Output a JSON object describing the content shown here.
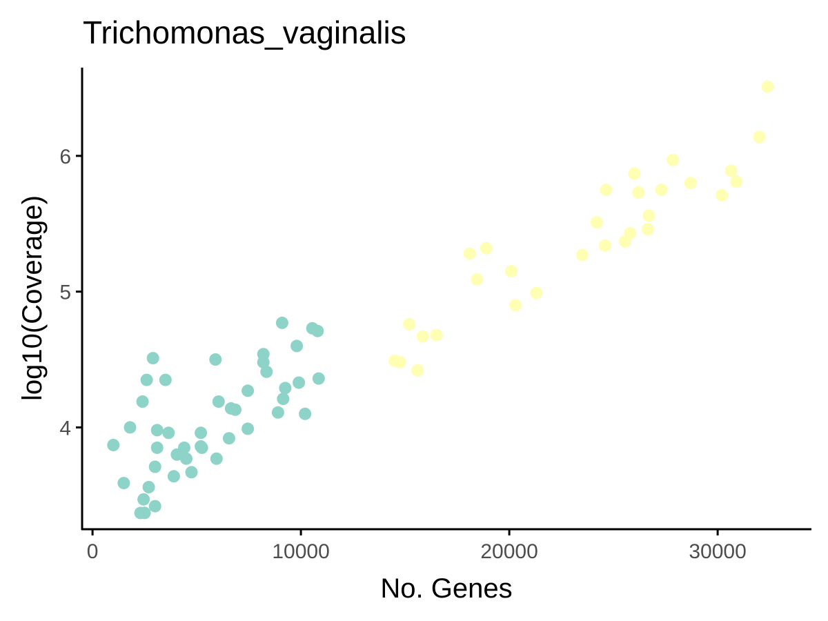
{
  "chart_data": {
    "type": "scatter",
    "title": "Trichomonas_vaginalis",
    "xlabel": "No. Genes",
    "ylabel": "log10(Coverage)",
    "xlim": [
      -500,
      34500
    ],
    "ylim": [
      3.25,
      6.65
    ],
    "x_ticks": [
      0,
      10000,
      20000,
      30000
    ],
    "y_ticks": [
      4,
      5,
      6
    ],
    "grid": false,
    "legend": "none",
    "series": [
      {
        "color": "#8dd3c7",
        "points": [
          [
            1000,
            3.87
          ],
          [
            1500,
            3.59
          ],
          [
            1800,
            4.0
          ],
          [
            2300,
            3.37
          ],
          [
            2400,
            4.19
          ],
          [
            2450,
            3.47
          ],
          [
            2500,
            3.37
          ],
          [
            2600,
            4.35
          ],
          [
            2700,
            3.56
          ],
          [
            2900,
            4.51
          ],
          [
            3000,
            3.42
          ],
          [
            3000,
            3.71
          ],
          [
            3100,
            3.85
          ],
          [
            3100,
            3.98
          ],
          [
            3500,
            4.35
          ],
          [
            3650,
            3.96
          ],
          [
            3900,
            3.64
          ],
          [
            4050,
            3.8
          ],
          [
            4400,
            3.85
          ],
          [
            4500,
            3.77
          ],
          [
            4750,
            3.67
          ],
          [
            5200,
            3.96
          ],
          [
            5200,
            3.86
          ],
          [
            5250,
            3.85
          ],
          [
            5900,
            4.5
          ],
          [
            5950,
            3.77
          ],
          [
            6050,
            4.19
          ],
          [
            6550,
            3.92
          ],
          [
            6650,
            4.14
          ],
          [
            6850,
            4.13
          ],
          [
            7450,
            4.27
          ],
          [
            7450,
            3.99
          ],
          [
            8200,
            4.54
          ],
          [
            8200,
            4.48
          ],
          [
            8350,
            4.41
          ],
          [
            8900,
            4.11
          ],
          [
            9100,
            4.77
          ],
          [
            9150,
            4.21
          ],
          [
            9250,
            4.29
          ],
          [
            9800,
            4.6
          ],
          [
            9900,
            4.33
          ],
          [
            10200,
            4.1
          ],
          [
            10550,
            4.73
          ],
          [
            10800,
            4.71
          ],
          [
            10850,
            4.36
          ]
        ]
      },
      {
        "color": "#ffffb3",
        "points": [
          [
            14500,
            4.49
          ],
          [
            14750,
            4.48
          ],
          [
            15200,
            4.76
          ],
          [
            15600,
            4.42
          ],
          [
            15850,
            4.67
          ],
          [
            16500,
            4.68
          ],
          [
            18100,
            5.28
          ],
          [
            18450,
            5.09
          ],
          [
            18900,
            5.32
          ],
          [
            20100,
            5.15
          ],
          [
            20300,
            4.9
          ],
          [
            21300,
            4.99
          ],
          [
            23500,
            5.27
          ],
          [
            24200,
            5.51
          ],
          [
            24600,
            5.34
          ],
          [
            24650,
            5.75
          ],
          [
            25550,
            5.37
          ],
          [
            25800,
            5.43
          ],
          [
            26000,
            5.87
          ],
          [
            26200,
            5.73
          ],
          [
            26650,
            5.46
          ],
          [
            26700,
            5.56
          ],
          [
            27300,
            5.75
          ],
          [
            27850,
            5.97
          ],
          [
            28700,
            5.8
          ],
          [
            30200,
            5.71
          ],
          [
            30650,
            5.89
          ],
          [
            30900,
            5.81
          ],
          [
            32000,
            6.14
          ],
          [
            32400,
            6.51
          ]
        ]
      }
    ]
  }
}
